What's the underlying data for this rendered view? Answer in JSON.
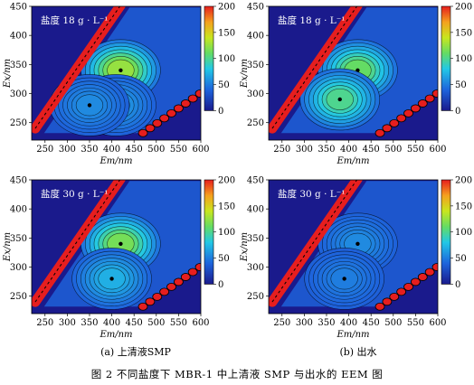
{
  "figure": {
    "caption": "图 2   不同盐度下 MBR-1 中上清液 SMP 与出水的 EEM 图",
    "subcaptions": [
      "(a) 上清液SMP",
      "(b) 出水"
    ]
  },
  "chart_data": [
    {
      "type": "heatmap",
      "panel": "top-left",
      "annotation": "盐度 18 g · L⁻¹",
      "xlabel": "E_m/nm",
      "ylabel": "E_x/nm",
      "xlim": [
        220,
        600
      ],
      "ylim": [
        220,
        450
      ],
      "xticks": [
        250,
        300,
        350,
        400,
        450,
        500,
        550,
        600
      ],
      "yticks": [
        250,
        300,
        350,
        400,
        450
      ],
      "colorbar": {
        "range": [
          0,
          200
        ],
        "ticks": [
          0,
          50,
          100,
          150,
          200
        ]
      },
      "peaks": [
        {
          "ex": 340,
          "em": 420,
          "intensity": 125
        },
        {
          "ex": 280,
          "em": 410,
          "intensity": 60
        },
        {
          "ex": 280,
          "em": 350,
          "intensity": 55
        }
      ]
    },
    {
      "type": "heatmap",
      "panel": "top-right",
      "annotation": "盐度 18 g · L⁻¹",
      "xlabel": "E_m/nm",
      "ylabel": "E_x/nm",
      "xlim": [
        220,
        600
      ],
      "ylim": [
        220,
        450
      ],
      "xticks": [
        250,
        300,
        350,
        400,
        450,
        500,
        550,
        600
      ],
      "yticks": [
        250,
        300,
        350,
        400,
        450
      ],
      "colorbar": {
        "range": [
          0,
          200
        ],
        "ticks": [
          0,
          50,
          100,
          150,
          200
        ]
      },
      "peaks": [
        {
          "ex": 340,
          "em": 420,
          "intensity": 110
        },
        {
          "ex": 290,
          "em": 380,
          "intensity": 100
        }
      ]
    },
    {
      "type": "heatmap",
      "panel": "bottom-left",
      "annotation": "盐度 30 g · L⁻¹",
      "xlabel": "E_m/nm",
      "ylabel": "E_x/nm",
      "xlim": [
        220,
        600
      ],
      "ylim": [
        220,
        450
      ],
      "xticks": [
        250,
        300,
        350,
        400,
        450,
        500,
        550,
        600
      ],
      "yticks": [
        250,
        300,
        350,
        400,
        450
      ],
      "colorbar": {
        "range": [
          0,
          200
        ],
        "ticks": [
          0,
          50,
          100,
          150,
          200
        ]
      },
      "peaks": [
        {
          "ex": 340,
          "em": 420,
          "intensity": 115
        },
        {
          "ex": 280,
          "em": 400,
          "intensity": 70
        }
      ]
    },
    {
      "type": "heatmap",
      "panel": "bottom-right",
      "annotation": "盐度 30 g · L⁻¹",
      "xlabel": "E_m/nm",
      "ylabel": "E_x/nm",
      "xlim": [
        220,
        600
      ],
      "ylim": [
        220,
        450
      ],
      "xticks": [
        250,
        300,
        350,
        400,
        450,
        500,
        550,
        600
      ],
      "yticks": [
        250,
        300,
        350,
        400,
        450
      ],
      "colorbar": {
        "range": [
          0,
          200
        ],
        "ticks": [
          0,
          50,
          100,
          150,
          200
        ]
      },
      "peaks": [
        {
          "ex": 340,
          "em": 420,
          "intensity": 55
        },
        {
          "ex": 280,
          "em": 390,
          "intensity": 50
        }
      ]
    }
  ]
}
